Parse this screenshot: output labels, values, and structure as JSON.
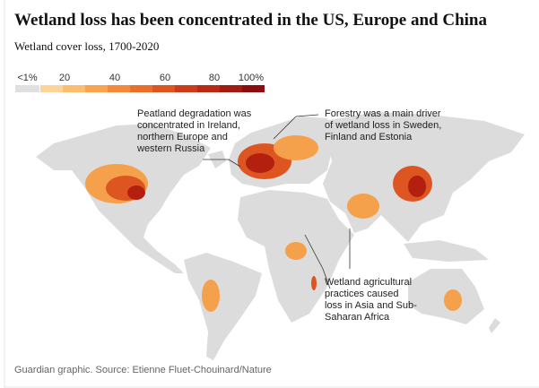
{
  "header": {
    "title": "Wetland loss has been concentrated in the US, Europe and China",
    "subtitle": "Wetland cover loss, 1700-2020"
  },
  "legend": {
    "labels": [
      "<1%",
      "20",
      "40",
      "60",
      "80",
      "100%"
    ],
    "colors": [
      "#e0e0e0",
      "#fcd49a",
      "#fbbd6e",
      "#f8a44e",
      "#f28a3a",
      "#e96f2a",
      "#dd5520",
      "#cc3c1a",
      "#b92a14",
      "#a21a12",
      "#8b0d0e"
    ]
  },
  "annotations": [
    {
      "lines": [
        "Peatland degradation was",
        "concentrated in Ireland,",
        "northern Europe and",
        "western Russia"
      ]
    },
    {
      "lines": [
        "Forestry was a main driver",
        "of wetland loss in Sweden,",
        "Finland and Estonia"
      ]
    },
    {
      "lines": [
        "Wetland agricultural",
        "practices caused",
        "loss in Asia and Sub-",
        "Saharan Africa"
      ]
    }
  ],
  "source": "Guardian graphic. Source: Etienne Fluet-Chouinard/Nature"
}
